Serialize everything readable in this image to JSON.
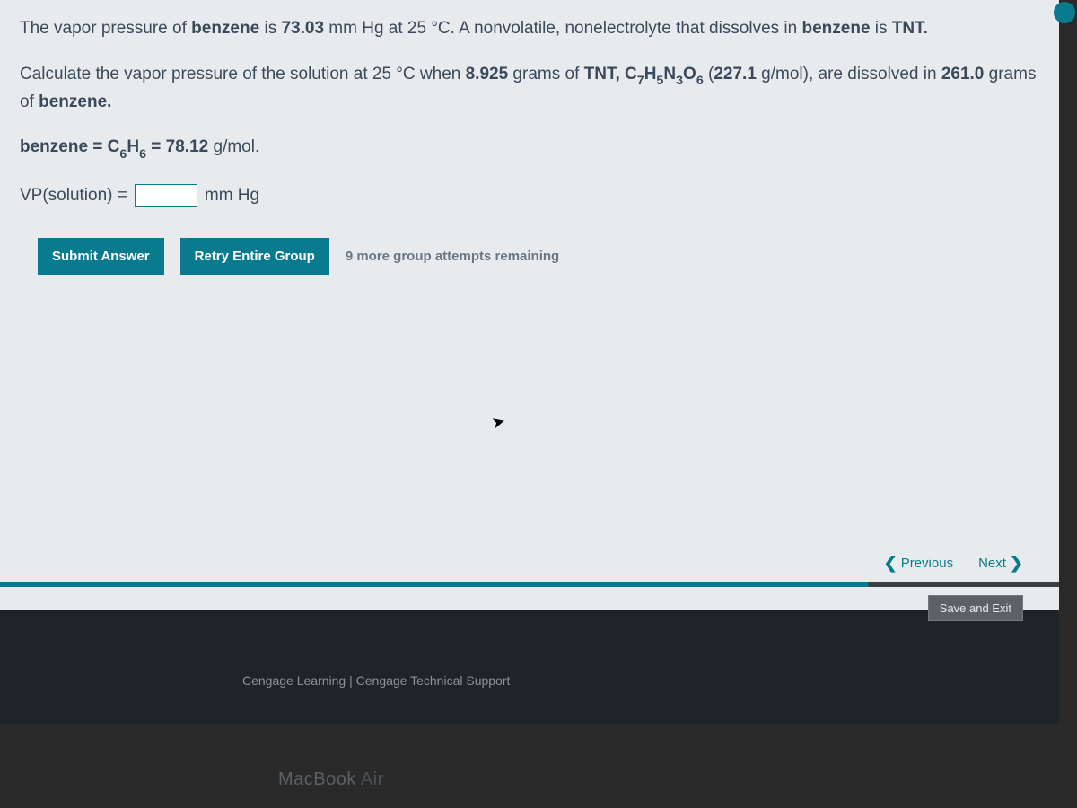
{
  "problem": {
    "line1_pre": "The vapor pressure of ",
    "line1_b1": "benzene",
    "line1_mid": " is ",
    "line1_b2": "73.03",
    "line1_post": " mm Hg at 25 °C. A nonvolatile, nonelectrolyte that dissolves in ",
    "line1_b3": "benzene",
    "line1_end": " is ",
    "line1_b4": "TNT.",
    "line2_pre": "Calculate the vapor pressure of the solution at 25 °C when ",
    "line2_b1": "8.925",
    "line2_mid1": " grams of ",
    "line2_b2": "TNT, C",
    "line2_sub1": "7",
    "line2_b2b": "H",
    "line2_sub2": "5",
    "line2_b2c": "N",
    "line2_sub3": "3",
    "line2_b2d": "O",
    "line2_sub4": "6",
    "line2_mid2": " (",
    "line2_b3": "227.1",
    "line2_mid3": " g/mol), are dissolved in ",
    "line2_b4": "261.0",
    "line2_mid4": " grams of ",
    "line2_b5": "benzene.",
    "line3_b1": "benzene = C",
    "line3_sub1": "6",
    "line3_b1b": "H",
    "line3_sub2": "6",
    "line3_b1c": " = 78.12",
    "line3_post": " g/mol."
  },
  "answer": {
    "label": "VP(solution) =",
    "value": "",
    "unit": "mm Hg"
  },
  "buttons": {
    "submit": "Submit Answer",
    "retry": "Retry Entire Group",
    "attempts": "9 more group attempts remaining"
  },
  "nav": {
    "previous": "Previous",
    "next": "Next",
    "save_exit": "Save and Exit"
  },
  "footer": {
    "cengage": "Cengage Learning",
    "sep": "  |  ",
    "support": "Cengage Technical Support"
  },
  "device": {
    "name": "MacBook",
    "variant": " Air"
  },
  "colors": {
    "panel_bg": "#e8ebed",
    "text": "#3a4a5a",
    "accent": "#0a7a8e",
    "footer_bg": "#1e2428",
    "muted": "#6a7680"
  }
}
